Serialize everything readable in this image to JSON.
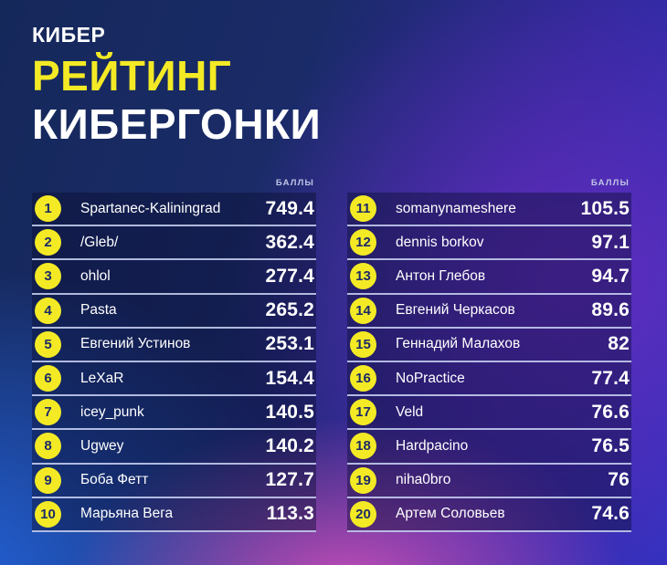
{
  "logo": {
    "text": "КИБЕР"
  },
  "title": {
    "line1": "РЕЙТИНГ",
    "line2": "КИБЕРГОНКИ"
  },
  "table": {
    "score_header": "БАЛЛЫ",
    "columns": [
      {
        "rows": [
          {
            "rank": "1",
            "name": "Spartanec-Kaliningrad",
            "score": "749.4"
          },
          {
            "rank": "2",
            "name": "/Gleb/",
            "score": "362.4"
          },
          {
            "rank": "3",
            "name": "ohlol",
            "score": "277.4"
          },
          {
            "rank": "4",
            "name": "Pasta",
            "score": "265.2"
          },
          {
            "rank": "5",
            "name": "Евгений Устинов",
            "score": "253.1"
          },
          {
            "rank": "6",
            "name": "LeXaR",
            "score": "154.4"
          },
          {
            "rank": "7",
            "name": "icey_punk",
            "score": "140.5"
          },
          {
            "rank": "8",
            "name": "Ugwey",
            "score": "140.2"
          },
          {
            "rank": "9",
            "name": "Боба Фетт",
            "score": "127.7"
          },
          {
            "rank": "10",
            "name": "Марьяна Вега",
            "score": "113.3"
          }
        ]
      },
      {
        "rows": [
          {
            "rank": "11",
            "name": "somanynameshere",
            "score": "105.5"
          },
          {
            "rank": "12",
            "name": "dennis borkov",
            "score": "97.1"
          },
          {
            "rank": "13",
            "name": "Антон Глебов",
            "score": "94.7"
          },
          {
            "rank": "14",
            "name": "Евгений Черкасов",
            "score": "89.6"
          },
          {
            "rank": "15",
            "name": "Геннадий Малахов",
            "score": "82"
          },
          {
            "rank": "16",
            "name": "NoPractice",
            "score": "77.4"
          },
          {
            "rank": "17",
            "name": "Veld",
            "score": "76.6"
          },
          {
            "rank": "18",
            "name": "Hardpacino",
            "score": "76.5"
          },
          {
            "rank": "19",
            "name": "niha0bro",
            "score": "76"
          },
          {
            "rank": "20",
            "name": "Артем Соловьев",
            "score": "74.6"
          }
        ]
      }
    ]
  },
  "colors": {
    "accent_yellow": "#f3ea25",
    "badge_text_navy": "#1d2b66",
    "row_separator": "#c6cff0",
    "row_band": "rgba(9,13,48,0.42)",
    "background_top_left_navy": "#15285a",
    "background_indigo": "#3331c0",
    "background_purple": "#692dc3",
    "background_pink": "#dd55be",
    "background_blue": "#2364dc",
    "text_white": "#ffffff",
    "score_header_text": "#bfc7e6"
  }
}
